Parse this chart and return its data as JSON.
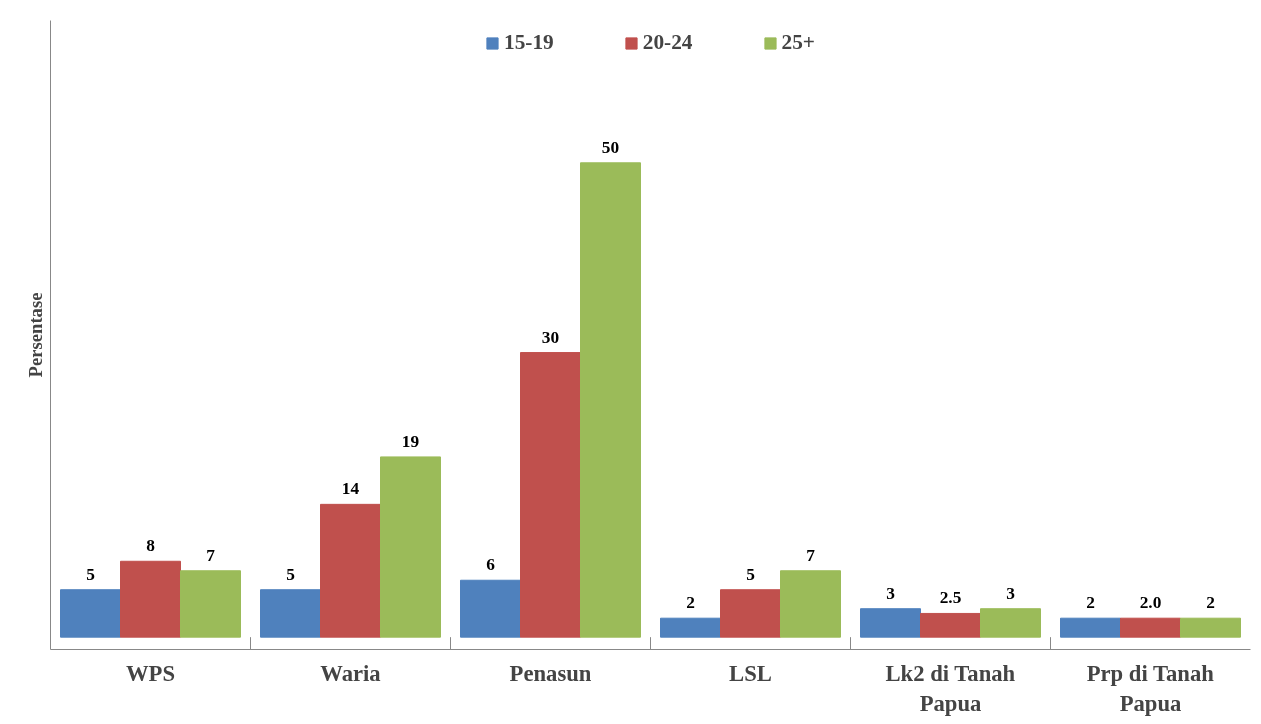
{
  "chart_data": {
    "type": "bar",
    "ylabel": "Persentase",
    "categories": [
      "WPS",
      "Waria",
      "Penasun",
      "LSL",
      "Lk2 di Tanah Papua",
      "Prp di Tanah Papua"
    ],
    "series": [
      {
        "name": "15-19",
        "color": "#4f81bd",
        "values": [
          5,
          5,
          6,
          2,
          3,
          2
        ],
        "value_labels": [
          "5",
          "5",
          "6",
          "2",
          "3",
          "2"
        ]
      },
      {
        "name": "20-24",
        "color": "#c0504d",
        "values": [
          8,
          14,
          30,
          5,
          2.5,
          2.0
        ],
        "value_labels": [
          "8",
          "14",
          "30",
          "5",
          "2.5",
          "2.0"
        ]
      },
      {
        "name": "25+",
        "color": "#9bbb59",
        "values": [
          7,
          19,
          50,
          7,
          3,
          2
        ],
        "value_labels": [
          "7",
          "19",
          "50",
          "7",
          "3",
          "2"
        ]
      }
    ],
    "legend": "top",
    "grid": false
  }
}
